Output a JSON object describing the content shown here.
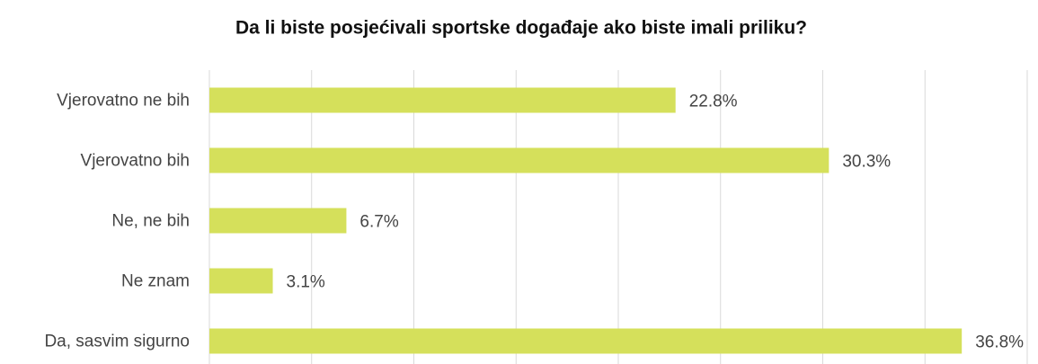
{
  "chart_data": {
    "type": "bar",
    "orientation": "horizontal",
    "title": "Da li biste posjećivali sportske događaje ako biste imali priliku?",
    "categories": [
      "Vjerovatno ne bih",
      "Vjerovatno bih",
      "Ne, ne bih",
      "Ne znam",
      "Da, sasvim sigurno"
    ],
    "values": [
      22.8,
      30.3,
      6.7,
      3.1,
      36.8
    ],
    "value_labels": [
      "22.8%",
      "30.3%",
      "6.7%",
      "3.1%",
      "36.8%"
    ],
    "color": "#d5e05b",
    "xlim": [
      0,
      40
    ],
    "xticks": [
      0,
      5,
      10,
      15,
      20,
      25,
      30,
      35,
      40
    ],
    "grid": true
  }
}
